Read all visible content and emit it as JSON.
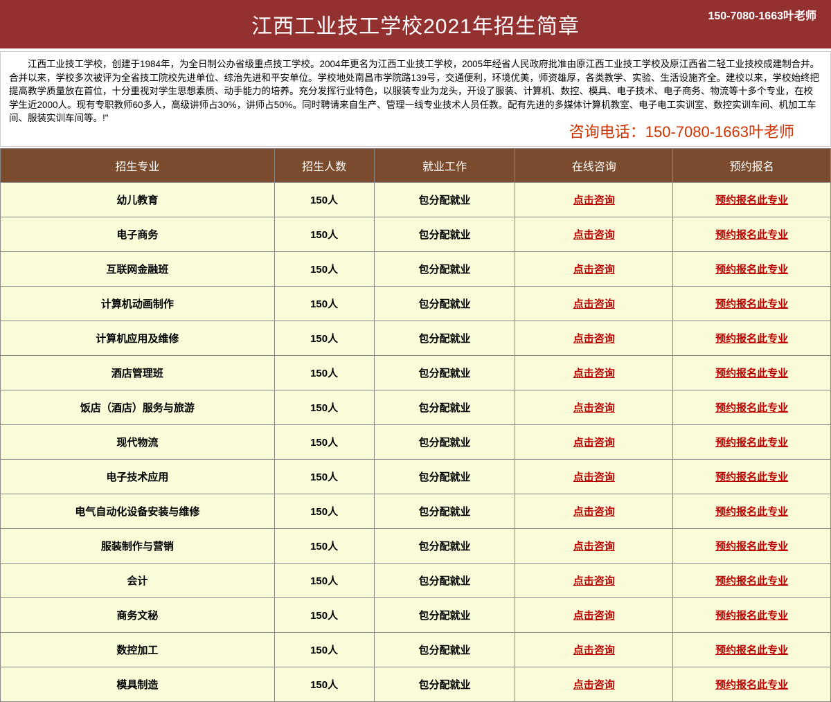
{
  "header": {
    "title": "江西工业技工学校2021年招生简章",
    "contact": "150-7080-1663叶老师"
  },
  "intro": {
    "text": "江西工业技工学校，创建于1984年，为全日制公办省级重点技工学校。2004年更名为江西工业技工学校，2005年经省人民政府批准由原江西工业技工学校及原江西省二轻工业技校成建制合并。合并以来，学校多次被评为全省技工院校先进单位、综治先进和平安单位。学校地处南昌市学院路139号，交通便利，环境优美，师资雄厚，各类教学、实验、生活设施齐全。建校以来，学校始终把提高教学质量放在首位，十分重视对学生思想素质、动手能力的培养。充分发挥行业特色，以服装专业为龙头，开设了服装、计算机、数控、模具、电子技术、电子商务、物流等十多个专业，在校学生近2000人。现有专职教师60多人，高级讲师占30%，讲师占50%。同时聘请来自生产、管理一线专业技术人员任教。配有先进的多媒体计算机教室、电子电工实训室、数控实训车间、机加工车间、服装实训车间等。!\"",
    "consult_label": "咨询电话：150-7080-1663叶老师"
  },
  "table": {
    "columns": [
      "招生专业",
      "招生人数",
      "就业工作",
      "在线咨询",
      "预约报名"
    ],
    "count_value": "150人",
    "job_value": "包分配就业",
    "consult_link": "点击咨询",
    "apply_link": "预约报名此专业",
    "majors": [
      "幼儿教育",
      "电子商务",
      "互联网金融班",
      "计算机动画制作",
      "计算机应用及维修",
      "酒店管理班",
      "饭店（酒店）服务与旅游",
      "现代物流",
      "电子技术应用",
      "电气自动化设备安装与维修",
      "服装制作与营销",
      "会计",
      "商务文秘",
      "数控加工",
      "模具制造"
    ]
  },
  "colors": {
    "header_bg": "#933131",
    "header_text": "#ffffff",
    "table_header_bg": "#7a4b2c",
    "table_cell_bg": "#fafbd9",
    "link_color": "#b90000",
    "consult_color": "#cc3300",
    "border_color": "#888888"
  }
}
